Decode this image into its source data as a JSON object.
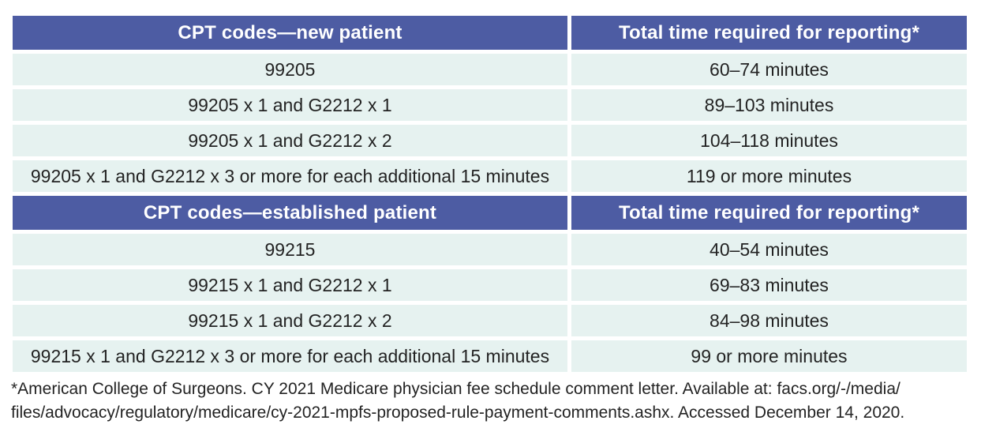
{
  "colors": {
    "header_bg": "#4d5ca3",
    "header_text": "#ffffff",
    "row_bg": "#e6f2f0",
    "body_text": "#232323",
    "page_bg": "#ffffff"
  },
  "table": {
    "sections": [
      {
        "header": [
          "CPT codes—new patient",
          "Total time required for reporting*"
        ],
        "rows": [
          [
            "99205",
            "60–74 minutes"
          ],
          [
            "99205 x 1 and G2212 x 1",
            "89–103 minutes"
          ],
          [
            "99205 x 1 and G2212 x 2",
            "104–118 minutes"
          ],
          [
            "99205 x 1 and G2212 x 3 or more for each additional 15 minutes",
            "119 or more minutes"
          ]
        ]
      },
      {
        "header": [
          "CPT codes—established patient",
          "Total time required for reporting*"
        ],
        "rows": [
          [
            "99215",
            "40–54 minutes"
          ],
          [
            "99215 x 1 and G2212 x 1",
            "69–83 minutes"
          ],
          [
            "99215 x 1 and G2212 x 2",
            "84–98 minutes"
          ],
          [
            "99215 x 1 and G2212 x 3 or more for each additional 15 minutes",
            "99 or more minutes"
          ]
        ]
      }
    ]
  },
  "chart_data": {
    "type": "table",
    "columns": [
      "CPT codes",
      "Total time required for reporting*"
    ],
    "sections": [
      {
        "group": "new patient",
        "rows": [
          {
            "cpt_codes": "99205",
            "total_time": "60–74 minutes"
          },
          {
            "cpt_codes": "99205 x 1 and G2212 x 1",
            "total_time": "89–103 minutes"
          },
          {
            "cpt_codes": "99205 x 1 and G2212 x 2",
            "total_time": "104–118 minutes"
          },
          {
            "cpt_codes": "99205 x 1 and G2212 x 3 or more for each additional 15 minutes",
            "total_time": "119 or more minutes"
          }
        ]
      },
      {
        "group": "established patient",
        "rows": [
          {
            "cpt_codes": "99215",
            "total_time": "40–54 minutes"
          },
          {
            "cpt_codes": "99215 x 1 and G2212 x 1",
            "total_time": "69–83 minutes"
          },
          {
            "cpt_codes": "99215 x 1 and G2212 x 2",
            "total_time": "84–98 minutes"
          },
          {
            "cpt_codes": "99215 x 1 and G2212 x 3 or more for each additional 15 minutes",
            "total_time": "99 or more minutes"
          }
        ]
      }
    ]
  },
  "footnote": {
    "lines": [
      "*American College of Surgeons. CY 2021 Medicare physician fee schedule comment letter. Available at: facs.org/-/media/",
      "files/advocacy/regulatory/medicare/cy-2021-mpfs-proposed-rule-payment-comments.ashx. Accessed December 14, 2020."
    ]
  }
}
